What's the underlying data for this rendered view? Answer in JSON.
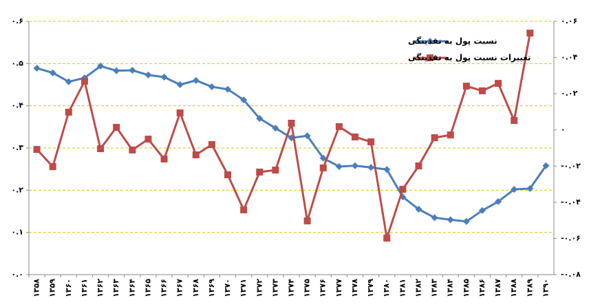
{
  "chart_data": {
    "type": "line",
    "categories": [
      "۱۳۵۸",
      "۱۳۵۹",
      "۱۳۶۰",
      "۱۳۶۱",
      "۱۳۶۲",
      "۱۳۶۳",
      "۱۳۶۴",
      "۱۳۶۵",
      "۱۳۶۶",
      "۱۳۶۷",
      "۱۳۶۸",
      "۱۳۶۹",
      "۱۳۷۰",
      "۱۳۷۱",
      "۱۳۷۲",
      "۱۳۷۳",
      "۱۳۷۴",
      "۱۳۷۵",
      "۱۳۷۶",
      "۱۳۷۷",
      "۱۳۷۸",
      "۱۳۷۹",
      "۱۳۸۰",
      "۱۳۸۱",
      "۱۳۸۲",
      "۱۳۸۳",
      "۱۳۸۴",
      "۱۳۸۵",
      "۱۳۸۶",
      "۱۳۸۷",
      "۱۳۸۸",
      "۱۳۸۹",
      "۱۳۹۰"
    ],
    "series": [
      {
        "name": "نسبت پول به نقدینگی",
        "color": "#4a7ebb",
        "marker": "diamond",
        "axis": "y",
        "values": [
          0.489,
          0.478,
          0.457,
          0.466,
          0.494,
          0.483,
          0.484,
          0.473,
          0.468,
          0.45,
          0.46,
          0.445,
          0.439,
          0.414,
          0.37,
          0.347,
          0.324,
          0.329,
          0.276,
          0.256,
          0.258,
          0.254,
          0.249,
          0.184,
          0.155,
          0.135,
          0.13,
          0.126,
          0.152,
          0.173,
          0.202,
          0.204,
          0.258
        ]
      },
      {
        "name": "تغییرات نسبت پول به نقدینگی",
        "color": "#be4b48",
        "marker": "square",
        "axis": "y2",
        "values": [
          -0.0108,
          -0.0203,
          0.0098,
          0.0269,
          -0.0104,
          0.0014,
          -0.0111,
          -0.0051,
          -0.0161,
          0.0094,
          -0.0138,
          -0.0081,
          -0.0248,
          -0.0442,
          -0.0233,
          -0.0222,
          0.0037,
          -0.0503,
          -0.021,
          0.0018,
          -0.0039,
          -0.0066,
          -0.0598,
          -0.0328,
          -0.0199,
          -0.0043,
          -0.0028,
          0.0242,
          0.0216,
          0.0257,
          0.0052,
          0.0535,
          null
        ]
      }
    ],
    "ylim": [
      0,
      0.6
    ],
    "yticks": [
      {
        "value": 0,
        "label": "۰.۰"
      },
      {
        "value": 0.1,
        "label": "۰.۱"
      },
      {
        "value": 0.2,
        "label": "۰.۲"
      },
      {
        "value": 0.3,
        "label": "۰.۳"
      },
      {
        "value": 0.4,
        "label": "۰.۴"
      },
      {
        "value": 0.5,
        "label": "۰.۵"
      },
      {
        "value": 0.6,
        "label": "۰.۶"
      }
    ],
    "y2lim": [
      -0.08,
      0.06
    ],
    "y2ticks": [
      {
        "value": -0.08,
        "label": "-۰.۰۸"
      },
      {
        "value": -0.06,
        "label": "-۰.۰۶"
      },
      {
        "value": -0.04,
        "label": "-۰.۰۴"
      },
      {
        "value": -0.02,
        "label": "-۰.۰۲"
      },
      {
        "value": 0,
        "label": "۰"
      },
      {
        "value": 0.02,
        "label": "۰.۰۲"
      },
      {
        "value": 0.04,
        "label": "۰.۰۴"
      },
      {
        "value": 0.06,
        "label": "۰.۰۶"
      }
    ],
    "grid": true,
    "grid_color": "#e6c200"
  }
}
